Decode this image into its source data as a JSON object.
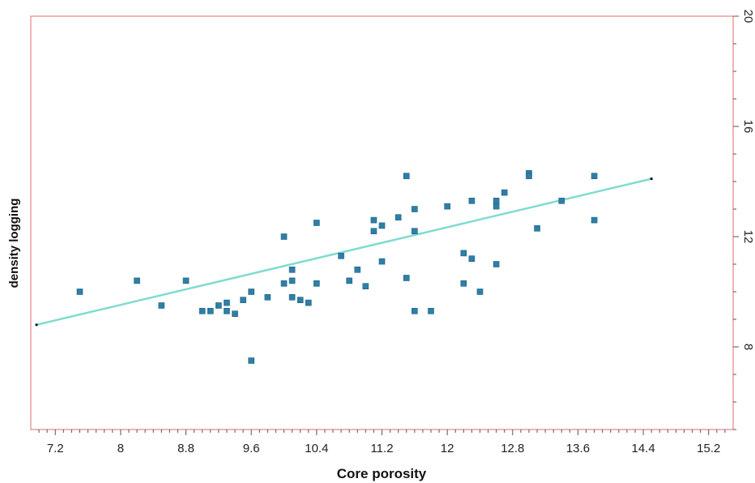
{
  "chart_data": {
    "type": "scatter",
    "title": "",
    "xlabel": "Core porosity",
    "ylabel": "density logging",
    "xlim": [
      6.9,
      15.5
    ],
    "ylim": [
      5,
      20
    ],
    "x_ticks": [
      7.2,
      8,
      8.8,
      9.6,
      10.4,
      11.2,
      12,
      12.8,
      13.6,
      14.4,
      15.2
    ],
    "x_tick_labels": [
      "7.2",
      "8",
      "8.8",
      "9.6",
      "10.4",
      "11.2",
      "12",
      "12.8",
      "13.6",
      "14.4",
      "15.2"
    ],
    "y_ticks": [
      8,
      12,
      16,
      20
    ],
    "y_tick_labels": [
      "8",
      "12",
      "16",
      "20"
    ],
    "grid": false,
    "colors": {
      "points": "#2e7fa8",
      "trendline": "#7fdccf",
      "frame": "#e06b6b"
    },
    "series": [
      {
        "type": "scatter",
        "points": [
          [
            7.5,
            10.0
          ],
          [
            8.2,
            10.4
          ],
          [
            8.5,
            9.5
          ],
          [
            8.8,
            10.4
          ],
          [
            9.0,
            9.3
          ],
          [
            9.1,
            9.3
          ],
          [
            9.2,
            9.5
          ],
          [
            9.3,
            9.6
          ],
          [
            9.3,
            9.3
          ],
          [
            9.4,
            9.2
          ],
          [
            9.5,
            9.7
          ],
          [
            9.6,
            10.0
          ],
          [
            9.6,
            7.5
          ],
          [
            9.8,
            9.8
          ],
          [
            10.0,
            12.0
          ],
          [
            10.0,
            10.3
          ],
          [
            10.1,
            10.8
          ],
          [
            10.1,
            10.4
          ],
          [
            10.1,
            9.8
          ],
          [
            10.2,
            9.7
          ],
          [
            10.3,
            9.6
          ],
          [
            10.4,
            12.5
          ],
          [
            10.4,
            10.3
          ],
          [
            10.7,
            11.3
          ],
          [
            10.8,
            10.4
          ],
          [
            10.9,
            10.8
          ],
          [
            11.0,
            10.2
          ],
          [
            11.1,
            12.6
          ],
          [
            11.1,
            12.2
          ],
          [
            11.2,
            12.4
          ],
          [
            11.2,
            11.1
          ],
          [
            11.4,
            12.7
          ],
          [
            11.5,
            14.2
          ],
          [
            11.5,
            10.5
          ],
          [
            11.6,
            13.0
          ],
          [
            11.6,
            12.2
          ],
          [
            11.6,
            9.3
          ],
          [
            11.8,
            9.3
          ],
          [
            12.0,
            13.1
          ],
          [
            12.2,
            11.4
          ],
          [
            12.2,
            10.3
          ],
          [
            12.3,
            11.2
          ],
          [
            12.3,
            13.3
          ],
          [
            12.4,
            10.0
          ],
          [
            12.6,
            13.3
          ],
          [
            12.6,
            13.1
          ],
          [
            12.6,
            11.0
          ],
          [
            12.7,
            13.6
          ],
          [
            13.0,
            14.3
          ],
          [
            13.0,
            14.2
          ],
          [
            13.1,
            12.3
          ],
          [
            13.4,
            13.3
          ],
          [
            13.8,
            14.2
          ],
          [
            13.8,
            12.6
          ]
        ]
      },
      {
        "type": "line",
        "points": [
          [
            6.97,
            8.8
          ],
          [
            14.5,
            14.1
          ]
        ]
      }
    ]
  }
}
